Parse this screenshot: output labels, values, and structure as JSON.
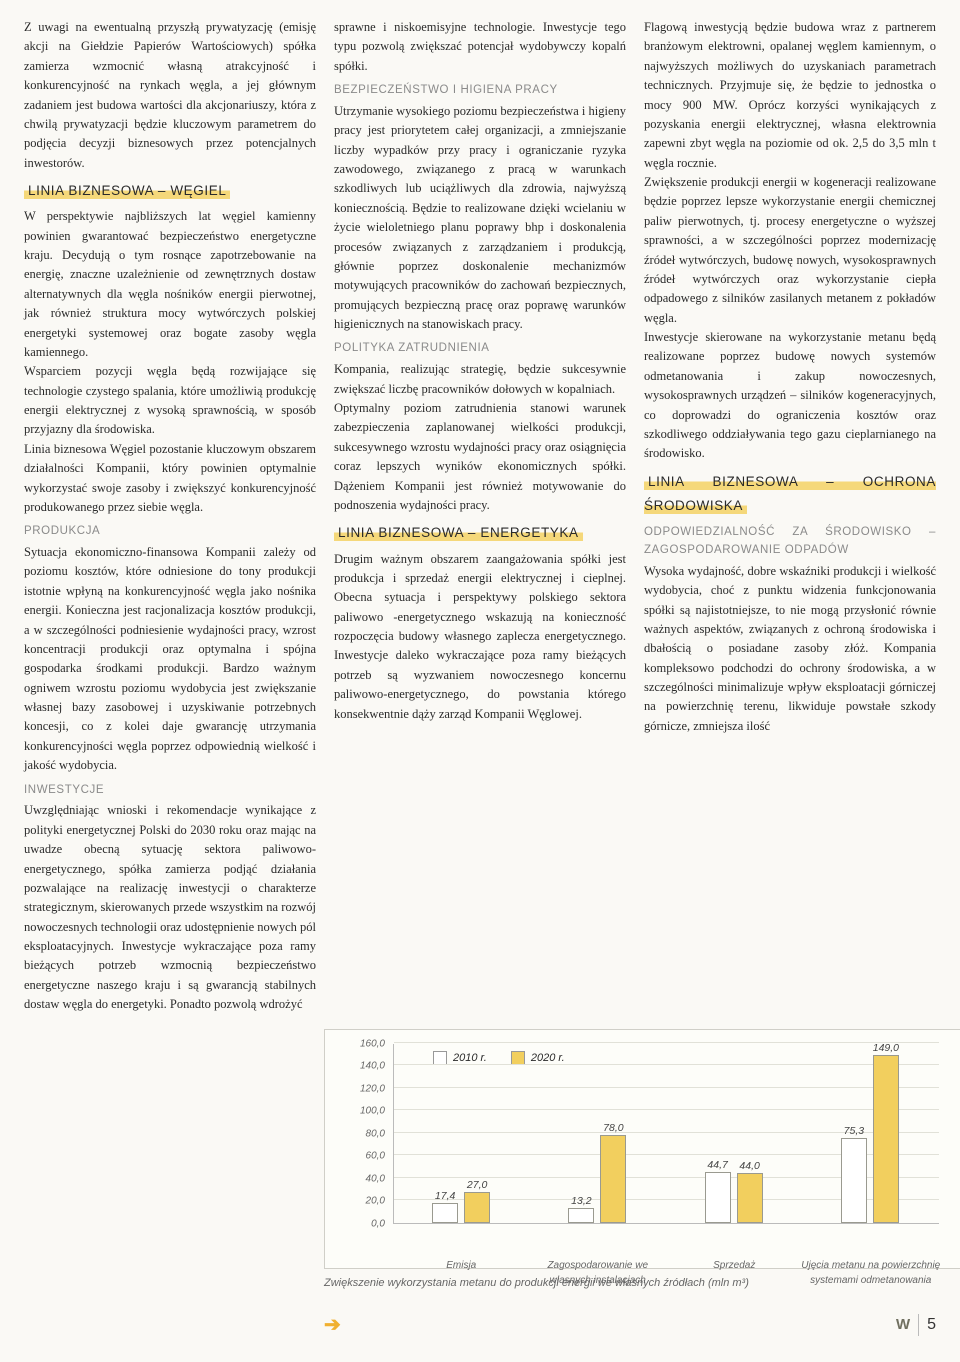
{
  "col1": {
    "p1": "Z uwagi na ewentualną przyszłą prywatyzację (emisję akcji na Giełdzie Papierów Wartościowych) spółka zamierza wzmocnić własną atrakcyjność i konkurencyjność na rynkach węgla, a jej głównym zadaniem jest budowa wartości dla akcjonariuszy, która z chwilą prywatyzacji będzie kluczowym parametrem do podjęcia decyzji biznesowych przez potencjalnych inwestorów.",
    "h_wegiel": "LINIA BIZNESOWA – WĘGIEL",
    "p2": "W perspektywie najbliższych lat węgiel kamienny powinien gwarantować bezpieczeństwo energetyczne kraju. Decydują o tym rosnące zapotrzebowanie na energię, znaczne uzależnienie od zewnętrznych dostaw alternatywnych dla węgla nośników energii pierwotnej, jak również struktura mocy wytwórczych polskiej energetyki systemowej oraz bogate zasoby węgla kamiennego.",
    "p3": "Wsparciem pozycji węgla będą rozwijające się technologie czystego spalania, które umożliwią produkcję energii elektrycznej z wysoką sprawnością, w sposób przyjazny dla środowiska.",
    "p4": "Linia biznesowa Węgiel pozostanie kluczowym obszarem działalności Kompanii, który powinien optymalnie wykorzystać swoje zasoby i zwiększyć konkurencyjność produkowanego przez siebie węgla.",
    "h_produkcja": "PRODUKCJA",
    "p5": "Sytuacja ekonomiczno-finansowa Kompanii zależy od poziomu kosztów, które odniesione do tony produkcji istotnie wpłyną na konkurencyjność węgla jako nośnika energii. Konieczna jest racjonalizacja kosztów produkcji, a w szczególności podniesienie wydajności pracy, wzrost koncentracji produkcji oraz optymalna i spójna gospodarka środkami produkcji. Bardzo ważnym ogniwem wzrostu poziomu wydobycia jest zwiększanie własnej bazy zasobowej i uzyskiwanie potrzebnych koncesji, co z kolei daje gwarancję utrzymania konkurencyjności węgla poprzez odpowiednią wielkość i jakość wydobycia.",
    "h_inwestycje": "INWESTYCJE",
    "p6": "Uwzględniając wnioski i rekomendacje wynikające z polityki energetycznej Polski do 2030 roku oraz mając na uwadze obecną sytuację sektora paliwowo-energetycznego, spółka zamierza podjąć działania pozwalające na realizację inwestycji o charakterze strategicznym, skierowanych przede wszystkim na rozwój nowoczesnych technologii oraz udostępnienie nowych pól eksploatacyjnych. Inwestycje wykraczające poza ramy bieżących potrzeb wzmocnią bezpieczeństwo energetyczne naszego kraju i są gwarancją stabilnych dostaw węgla do energetyki. Ponadto pozwolą wdrożyć"
  },
  "col2": {
    "p1": "sprawne i niskoemisyjne technologie. Inwestycje tego typu pozwolą zwiększać potencjał wydobywczy kopalń spółki.",
    "h_bhp": "BEZPIECZEŃSTWO I HIGIENA PRACY",
    "p2": "Utrzymanie wysokiego poziomu bezpieczeństwa i higieny pracy jest priorytetem całej organizacji, a zmniejszanie liczby wypadków przy pracy i ograniczanie ryzyka zawodowego, związanego z pracą w warunkach szkodliwych lub uciążliwych dla zdrowia, najwyższą koniecznością. Będzie to realizowane dzięki wcielaniu w życie wieloletniego planu poprawy bhp i doskonalenia procesów związanych z zarządzaniem i produkcją, głównie poprzez doskonalenie mechanizmów motywujących pracowników do zachowań bezpiecznych, promujących bezpieczną pracę oraz poprawę warunków higienicznych na stanowiskach pracy.",
    "h_polityka": "POLITYKA ZATRUDNIENIA",
    "p3": "Kompania, realizując strategię, będzie sukcesywnie zwiększać liczbę pracowników dołowych w kopalniach.",
    "p4": "Optymalny poziom zatrudnienia stanowi warunek zabezpieczenia zaplanowanej wielkości produkcji, sukcesywnego wzrostu wydajności pracy oraz osiągnięcia coraz lepszych wyników ekonomicznych spółki. Dążeniem Kompanii jest również motywowanie do podnoszenia wydajności pracy.",
    "h_energ": "LINIA BIZNESOWA – ENERGETYKA",
    "p5": "Drugim ważnym obszarem zaangażowania spółki jest produkcja i sprzedaż energii elektrycznej i cieplnej. Obecna sytuacja i perspektywy polskiego sektora paliwowo -energetycznego wskazują na konieczność rozpoczęcia budowy własnego zaplecza energetycznego. Inwestycje daleko wykraczające poza ramy bieżących potrzeb są wyzwaniem nowoczesnego koncernu paliwowo-energetycznego, do powstania którego konsekwentnie dąży zarząd Kompanii Węglowej."
  },
  "col3": {
    "p1": "Flagową inwestycją będzie budowa wraz z partnerem branżowym elektrowni, opalanej węglem kamiennym, o najwyższych możliwych do uzyskaniach parametrach technicznych. Przyjmuje się, że będzie to jednostka o mocy 900 MW. Oprócz korzyści wynikających z pozyskania energii elektrycznej, własna elektrownia zapewni zbyt węgla na poziomie od ok. 2,5 do 3,5 mln t węgla rocznie.",
    "p2": "Zwiększenie produkcji energii w kogeneracji realizowane będzie poprzez lepsze wykorzystanie energii chemicznej paliw pierwotnych, tj. procesy energetyczne o wyższej sprawności, a w szczególności poprzez modernizację źródeł wytwórczych, budowę nowych, wysokosprawnych źródeł wytwórczych oraz wykorzystanie ciepła odpadowego z silników zasilanych metanem z pokładów węgla.",
    "p3": "Inwestycje skierowane na wykorzystanie metanu będą realizowane poprzez budowę nowych systemów odmetanowania i zakup nowoczesnych, wysokosprawnych urządzeń – silników kogeneracyjnych, co doprowadzi do ograniczenia kosztów oraz szkodliwego oddziaływania tego gazu cieplarnianego na środowisko.",
    "h_ochrona": "LINIA BIZNESOWA – OCHRONA ŚRODOWISKA",
    "h_odp": "ODPOWIEDZIALNOŚĆ ZA ŚRODOWISKO – ZAGOSPODAROWANIE ODPADÓW",
    "p4": "Wysoka wydajność, dobre wskaźniki produkcji i wielkość wydobycia, choć z punktu widzenia funkcjonowania spółki są najistotniejsze, to nie mogą przysłonić równie ważnych aspektów, związanych z ochroną środowiska i dbałością o posiadane zasoby złóż. Kompania kompleksowo podchodzi do ochrony środowiska, a w szczególności minimalizuje wpływ eksploatacji górniczej na powierzchnię terenu, likwiduje powstałe szkody górnicze, zmniejsza ilość"
  },
  "chart": {
    "legend": {
      "s1": "2010 r.",
      "s2": "2020 r."
    },
    "colors": {
      "s1": "#ffffff",
      "s2": "#f2cf5e",
      "border": "#9a9a90",
      "grid": "#e1e1d8",
      "bg": "#fdfdf9"
    },
    "ymax": 160,
    "ytick_step": 20,
    "yticks": [
      "0,0",
      "20,0",
      "40,0",
      "60,0",
      "80,0",
      "100,0",
      "120,0",
      "140,0",
      "160,0"
    ],
    "groups": [
      {
        "label": "Emisja",
        "v1": 17.4,
        "v2": 27.0,
        "l1": "17,4",
        "l2": "27,0"
      },
      {
        "label": "Zagospodarowanie we własnych instalacjach",
        "v1": 13.2,
        "v2": 78.0,
        "l1": "13,2",
        "l2": "78,0"
      },
      {
        "label": "Sprzedaż",
        "v1": 44.7,
        "v2": 44.0,
        "l1": "44,7",
        "l2": "44,0"
      },
      {
        "label": "Ujęcia metanu na powierzchnię systemami odmetanowania",
        "v1": 75.3,
        "v2": 149.0,
        "l1": "75,3",
        "l2": "149,0"
      }
    ],
    "caption": "Zwiększenie wykorzystania metanu do produkcji energii we własnych źródłach (mln m³)"
  },
  "page_number": "5"
}
